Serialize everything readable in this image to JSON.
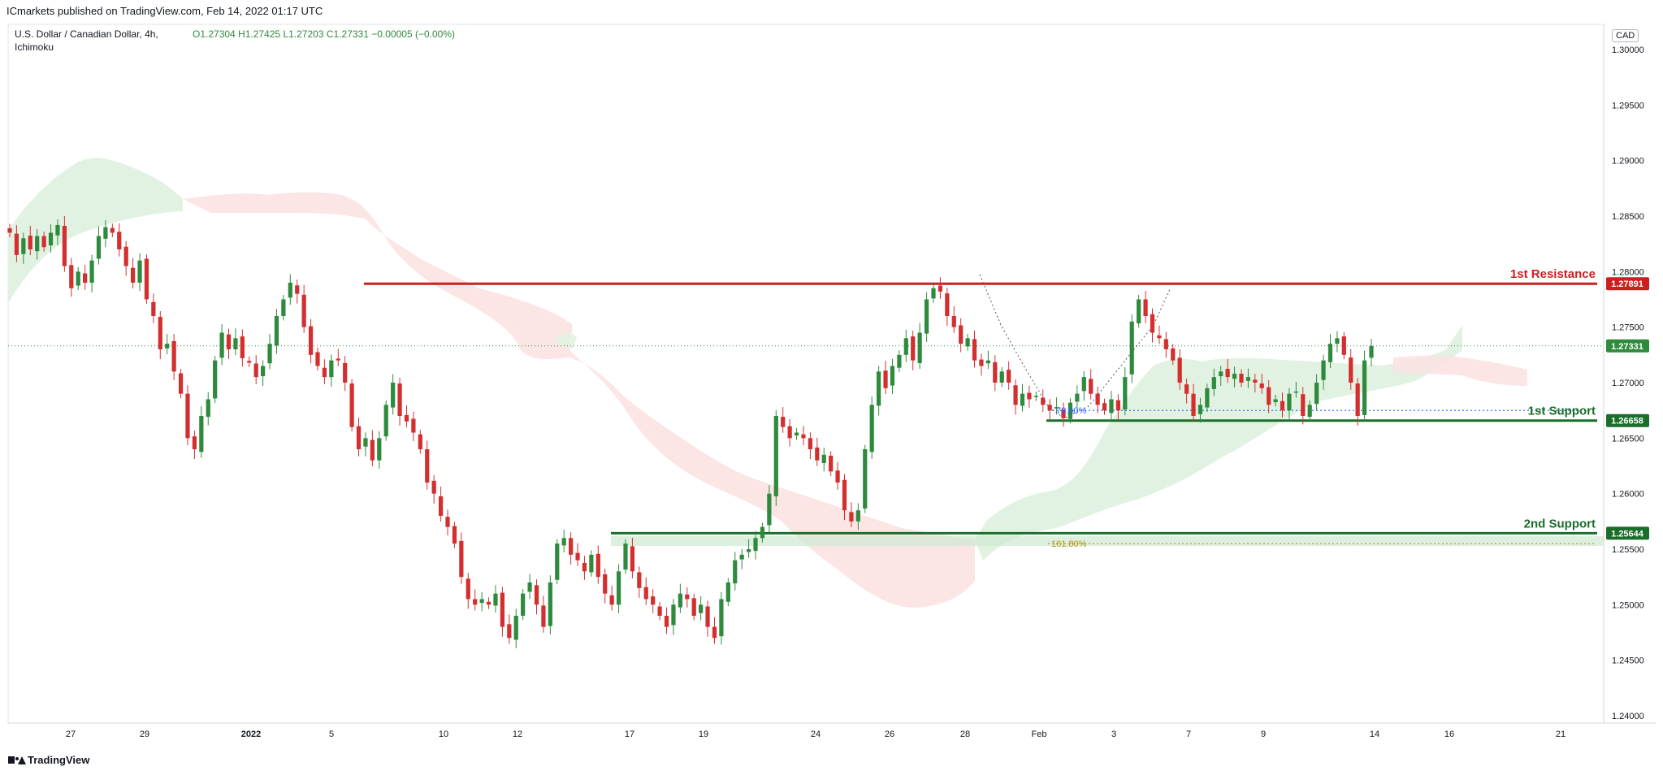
{
  "header": {
    "published": "ICmarkets published on TradingView.com, Feb 14, 2022 01:17 UTC",
    "symbol": "U.S. Dollar / Canadian Dollar, 4h,",
    "ohlc_o": "O1.27304",
    "ohlc_h": "H1.27425",
    "ohlc_l": "L1.27203",
    "ohlc_c": "C1.27331",
    "change": "−0.00005 (−0.00%)",
    "indicator": "Ichimoku"
  },
  "currency_badge": "CAD",
  "footer_brand": "TradingView",
  "colors": {
    "up": "#2e8b3e",
    "down": "#d32f2f",
    "resistance": "#cc1f1f",
    "support": "#1b6e2a",
    "cloud_bull": "#d9f0d9",
    "cloud_bear": "#fbe0e0",
    "fib_blue": "#2962ff",
    "fib_gold": "#b7950b"
  },
  "chart_data": {
    "type": "candlestick",
    "ylim": [
      1.24,
      1.3
    ],
    "y_ticks": [
      "1.30000",
      "1.29500",
      "1.29000",
      "1.28500",
      "1.28000",
      "1.27500",
      "1.27000",
      "1.26500",
      "1.26000",
      "1.25500",
      "1.25000",
      "1.24500",
      "1.24000"
    ],
    "y_tick_values": [
      1.3,
      1.295,
      1.29,
      1.285,
      1.28,
      1.275,
      1.27,
      1.265,
      1.26,
      1.255,
      1.25,
      1.245,
      1.24
    ],
    "x_ticks": [
      "27",
      "29",
      "2022",
      "5",
      "10",
      "12",
      "17",
      "19",
      "24",
      "26",
      "28",
      "Feb",
      "3",
      "7",
      "9",
      "14",
      "16",
      "21"
    ],
    "levels": [
      {
        "label": "1st Resistance",
        "value": 1.27891,
        "value_text": "1.27891",
        "kind": "resistance"
      },
      {
        "label": "1st Support",
        "value": 1.26658,
        "value_text": "1.26658",
        "kind": "support"
      },
      {
        "label": "2nd Support",
        "value": 1.25644,
        "value_text": "1.25644",
        "kind": "support"
      }
    ],
    "last_price": {
      "value": 1.27331,
      "value_text": "1.27331"
    },
    "fib_levels": [
      {
        "label": "78.60%",
        "value": 1.2675
      },
      {
        "label": "161.80%",
        "value": 1.2555
      }
    ],
    "close_path": [
      1.2835,
      1.2815,
      1.283,
      1.282,
      1.2832,
      1.2822,
      1.2835,
      1.2842,
      1.2805,
      1.2785,
      1.28,
      1.279,
      1.281,
      1.2832,
      1.284,
      1.2835,
      1.282,
      1.2805,
      1.279,
      1.281,
      1.2775,
      1.276,
      1.273,
      1.2735,
      1.271,
      1.269,
      1.265,
      1.264,
      1.267,
      1.2685,
      1.272,
      1.2745,
      1.273,
      1.274,
      1.2722,
      1.2718,
      1.2705,
      1.2715,
      1.2735,
      1.276,
      1.2775,
      1.279,
      1.278,
      1.275,
      1.2725,
      1.2715,
      1.2705,
      1.272,
      1.272,
      1.27,
      1.266,
      1.264,
      1.265,
      1.263,
      1.265,
      1.268,
      1.27,
      1.267,
      1.2665,
      1.2655,
      1.264,
      1.261,
      1.26,
      1.258,
      1.257,
      1.2555,
      1.2525,
      1.2505,
      1.25,
      1.2505,
      1.25,
      1.251,
      1.248,
      1.247,
      1.249,
      1.251,
      1.252,
      1.25,
      1.248,
      1.252,
      1.2555,
      1.256,
      1.2545,
      1.254,
      1.253,
      1.2545,
      1.2525,
      1.251,
      1.25,
      1.253,
      1.2555,
      1.253,
      1.2515,
      1.2505,
      1.25,
      1.249,
      1.248,
      1.25,
      1.251,
      1.2505,
      1.249,
      1.25,
      1.248,
      1.247,
      1.2505,
      1.252,
      1.254,
      1.2545,
      1.255,
      1.256,
      1.257,
      1.26,
      1.267,
      1.266,
      1.265,
      1.2655,
      1.265,
      1.264,
      1.263,
      1.2635,
      1.262,
      1.261,
      1.2585,
      1.2575,
      1.2585,
      1.264,
      1.268,
      1.271,
      1.2695,
      1.2715,
      1.2725,
      1.274,
      1.272,
      1.2745,
      1.2775,
      1.2785,
      1.2782,
      1.276,
      1.275,
      1.2735,
      1.274,
      1.272,
      1.2715,
      1.272,
      1.27,
      1.271,
      1.27,
      1.268,
      1.269,
      1.2685,
      1.2688,
      1.268,
      1.2675,
      1.2678,
      1.2668,
      1.2682,
      1.269,
      1.2705,
      1.269,
      1.268,
      1.2675,
      1.2685,
      1.2675,
      1.2705,
      1.2755,
      1.2775,
      1.276,
      1.2745,
      1.274,
      1.273,
      1.272,
      1.27,
      1.269,
      1.267,
      1.268,
      1.2695,
      1.2705,
      1.271,
      1.2705,
      1.2708,
      1.27,
      1.2705,
      1.27,
      1.2695,
      1.268,
      1.2685,
      1.2675,
      1.269,
      1.2692,
      1.267,
      1.268,
      1.27,
      1.272,
      1.2735,
      1.274,
      1.2725,
      1.27,
      1.267,
      1.272,
      1.2733
    ]
  }
}
